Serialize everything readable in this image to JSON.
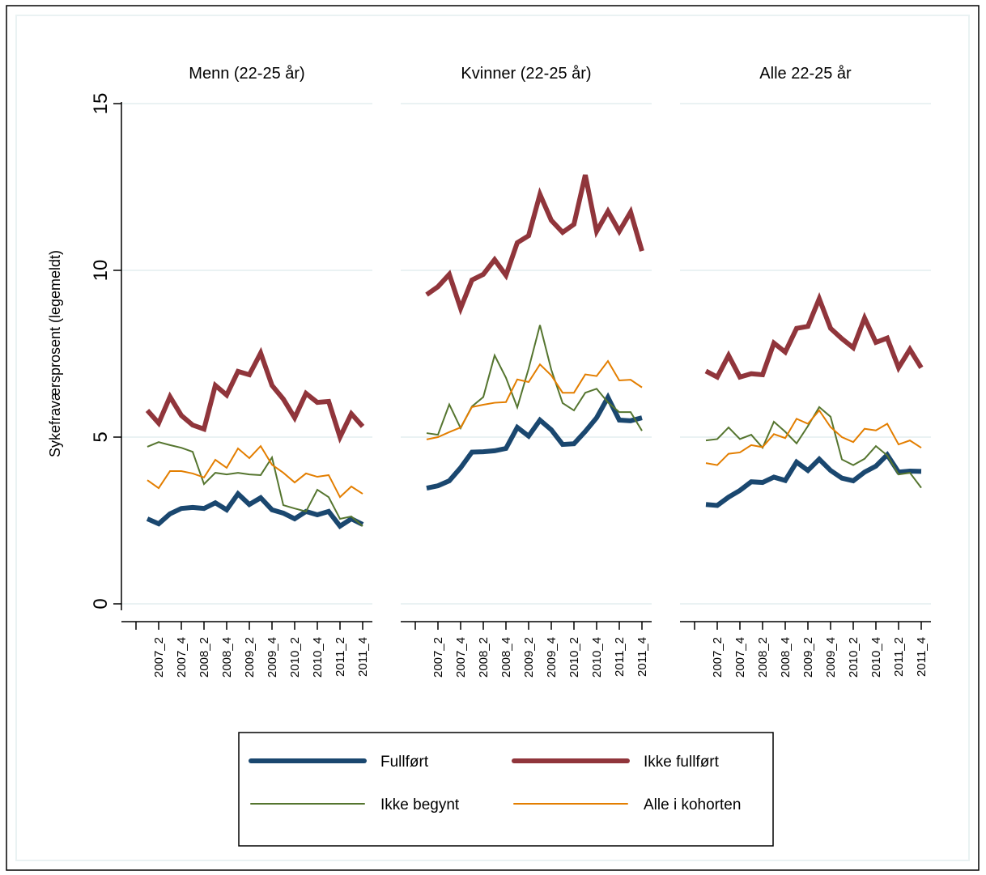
{
  "chart_data": [
    {
      "type": "line",
      "title": "Menn (22-25 år)",
      "ylabel": "Sykefraværsprosent (legemeldt)",
      "categories": [
        null,
        "2007_2",
        null,
        "2007_4",
        null,
        "2008_2",
        null,
        "2008_4",
        null,
        "2009_2",
        null,
        "2009_4",
        null,
        "2010_2",
        null,
        "2010_4",
        null,
        "2011_2",
        null,
        "2011_4"
      ],
      "ylim": [
        0,
        15
      ],
      "yticks": [
        0,
        5,
        10,
        15
      ],
      "grid": true,
      "series": [
        {
          "name": "Fullført",
          "color": "#1a476f",
          "values": [
            2.55,
            2.4,
            2.7,
            2.86,
            2.89,
            2.86,
            3.03,
            2.82,
            3.3,
            2.98,
            3.18,
            2.82,
            2.72,
            2.55,
            2.77,
            2.67,
            2.77,
            2.33,
            2.55,
            2.38
          ]
        },
        {
          "name": "Ikke fullført",
          "color": "#90353b",
          "values": [
            5.8,
            5.42,
            6.21,
            5.65,
            5.36,
            5.24,
            6.55,
            6.26,
            6.97,
            6.87,
            7.52,
            6.55,
            6.14,
            5.58,
            6.31,
            6.04,
            6.07,
            5.0,
            5.7,
            5.32
          ]
        },
        {
          "name": "Ikke begynt",
          "color": "#55752f",
          "values": [
            4.71,
            4.85,
            4.76,
            4.68,
            4.56,
            3.59,
            3.93,
            3.88,
            3.93,
            3.88,
            3.86,
            4.39,
            2.96,
            2.86,
            2.77,
            3.42,
            3.2,
            2.55,
            2.62,
            2.33
          ]
        },
        {
          "name": "Alle i kohorten",
          "color": "#e37e00",
          "values": [
            3.71,
            3.47,
            3.98,
            3.98,
            3.91,
            3.79,
            4.32,
            4.08,
            4.66,
            4.37,
            4.73,
            4.17,
            3.93,
            3.64,
            3.91,
            3.81,
            3.86,
            3.2,
            3.52,
            3.3
          ]
        }
      ]
    },
    {
      "type": "line",
      "title": "Kvinner (22-25 år)",
      "categories": [
        null,
        "2007_2",
        null,
        "2007_4",
        null,
        "2008_2",
        null,
        "2008_4",
        null,
        "2009_2",
        null,
        "2009_4",
        null,
        "2010_2",
        null,
        "2010_4",
        null,
        "2011_2",
        null,
        "2011_4"
      ],
      "ylim": [
        0,
        15
      ],
      "yticks": [
        0,
        5,
        10,
        15
      ],
      "grid": true,
      "series": [
        {
          "name": "Fullført",
          "color": "#1a476f",
          "values": [
            3.47,
            3.54,
            3.69,
            4.08,
            4.55,
            4.56,
            4.59,
            4.66,
            5.29,
            5.03,
            5.51,
            5.22,
            4.78,
            4.8,
            5.17,
            5.58,
            6.19,
            5.51,
            5.49,
            5.58
          ]
        },
        {
          "name": "Ikke fullført",
          "color": "#90353b",
          "values": [
            9.27,
            9.51,
            9.88,
            8.86,
            9.71,
            9.88,
            10.32,
            9.85,
            10.83,
            11.04,
            12.28,
            11.5,
            11.14,
            11.38,
            12.86,
            11.17,
            11.77,
            11.17,
            11.75,
            10.58
          ]
        },
        {
          "name": "Ikke begynt",
          "color": "#55752f",
          "values": [
            5.12,
            5.07,
            5.98,
            5.27,
            5.92,
            6.2,
            7.45,
            6.78,
            5.89,
            7.05,
            8.36,
            7.02,
            6.02,
            5.8,
            6.33,
            6.45,
            6.04,
            5.75,
            5.75,
            5.19
          ]
        },
        {
          "name": "Alle i kohorten",
          "color": "#e37e00",
          "values": [
            4.93,
            5.0,
            5.15,
            5.29,
            5.9,
            5.97,
            6.03,
            6.05,
            6.73,
            6.65,
            7.18,
            6.85,
            6.33,
            6.33,
            6.88,
            6.83,
            7.28,
            6.7,
            6.72,
            6.49
          ]
        }
      ]
    },
    {
      "type": "line",
      "title": "Alle 22-25 år",
      "categories": [
        null,
        "2007_2",
        null,
        "2007_4",
        null,
        "2008_2",
        null,
        "2008_4",
        null,
        "2009_2",
        null,
        "2009_4",
        null,
        "2010_2",
        null,
        "2010_4",
        null,
        "2011_2",
        null,
        "2011_4"
      ],
      "ylim": [
        0,
        15
      ],
      "yticks": [
        0,
        5,
        10,
        15
      ],
      "grid": true,
      "series": [
        {
          "name": "Fullført",
          "color": "#1a476f",
          "values": [
            2.98,
            2.95,
            3.2,
            3.4,
            3.66,
            3.64,
            3.8,
            3.7,
            4.25,
            4.0,
            4.34,
            4.0,
            3.77,
            3.69,
            3.95,
            4.13,
            4.47,
            3.95,
            3.98,
            3.97
          ]
        },
        {
          "name": "Ikke fullført",
          "color": "#90353b",
          "values": [
            6.98,
            6.8,
            7.45,
            6.8,
            6.9,
            6.87,
            7.82,
            7.55,
            8.26,
            8.32,
            9.15,
            8.26,
            7.95,
            7.68,
            8.57,
            7.84,
            7.97,
            7.08,
            7.63,
            7.08
          ]
        },
        {
          "name": "Ikke begynt",
          "color": "#55752f",
          "values": [
            4.9,
            4.94,
            5.29,
            4.94,
            5.07,
            4.68,
            5.46,
            5.16,
            4.81,
            5.33,
            5.9,
            5.61,
            4.33,
            4.16,
            4.35,
            4.73,
            4.45,
            3.88,
            3.93,
            3.48
          ]
        },
        {
          "name": "Alle i kohorten",
          "color": "#e37e00",
          "values": [
            4.22,
            4.16,
            4.5,
            4.54,
            4.76,
            4.7,
            5.09,
            4.97,
            5.55,
            5.4,
            5.8,
            5.3,
            5.0,
            4.85,
            5.25,
            5.2,
            5.4,
            4.78,
            4.9,
            4.68
          ]
        }
      ]
    }
  ]
}
